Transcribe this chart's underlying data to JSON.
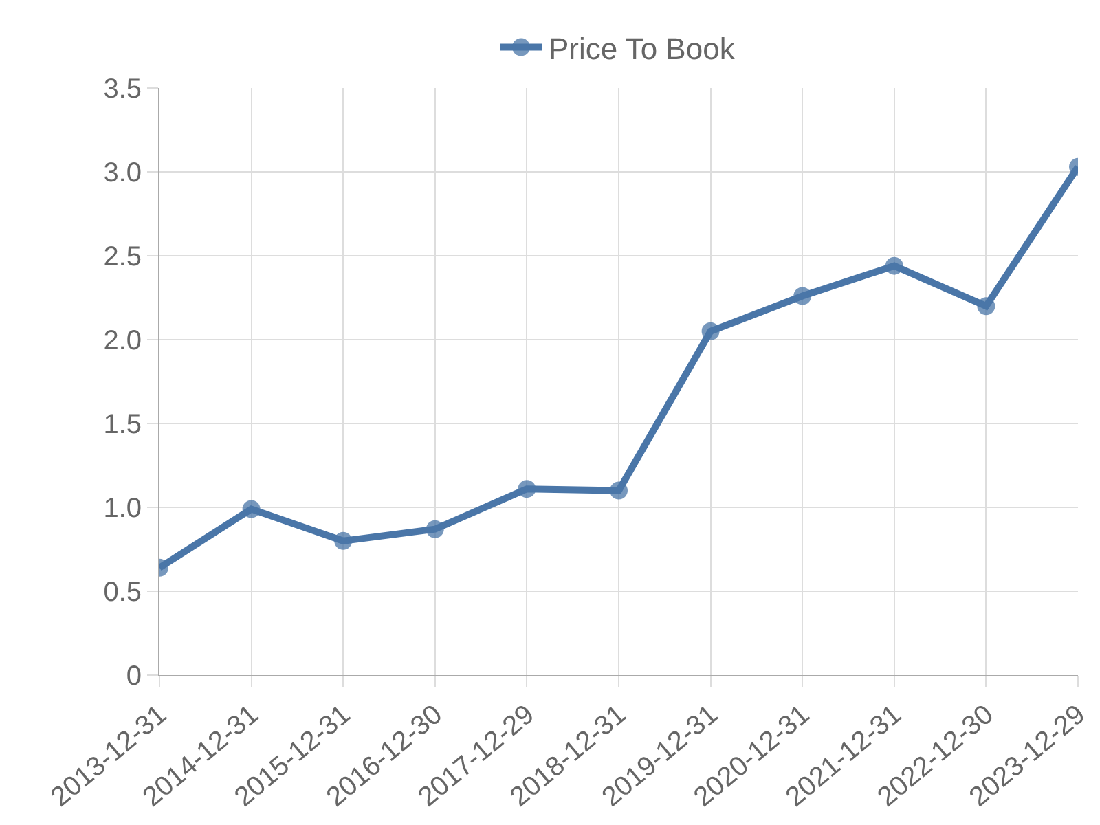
{
  "chart_data": {
    "type": "line",
    "categories": [
      "2013-12-31",
      "2014-12-31",
      "2015-12-31",
      "2016-12-30",
      "2017-12-29",
      "2018-12-31",
      "2019-12-31",
      "2020-12-31",
      "2021-12-31",
      "2022-12-30",
      "2023-12-29"
    ],
    "series": [
      {
        "name": "Price To Book",
        "color": "#4a76a8",
        "values": [
          0.64,
          0.99,
          0.8,
          0.87,
          1.11,
          1.1,
          2.05,
          2.26,
          2.44,
          2.2,
          3.03
        ]
      }
    ],
    "ylim": [
      0,
      3.5
    ],
    "yticks": [
      0,
      0.5,
      {
        "value": 1,
        "label": "1.0"
      },
      1.5,
      {
        "value": 2,
        "label": "2.0"
      },
      2.5,
      {
        "value": 3,
        "label": "3.0"
      },
      3.5
    ],
    "grid": true,
    "legend": "top",
    "marker": "circle",
    "line_style": "solid"
  }
}
